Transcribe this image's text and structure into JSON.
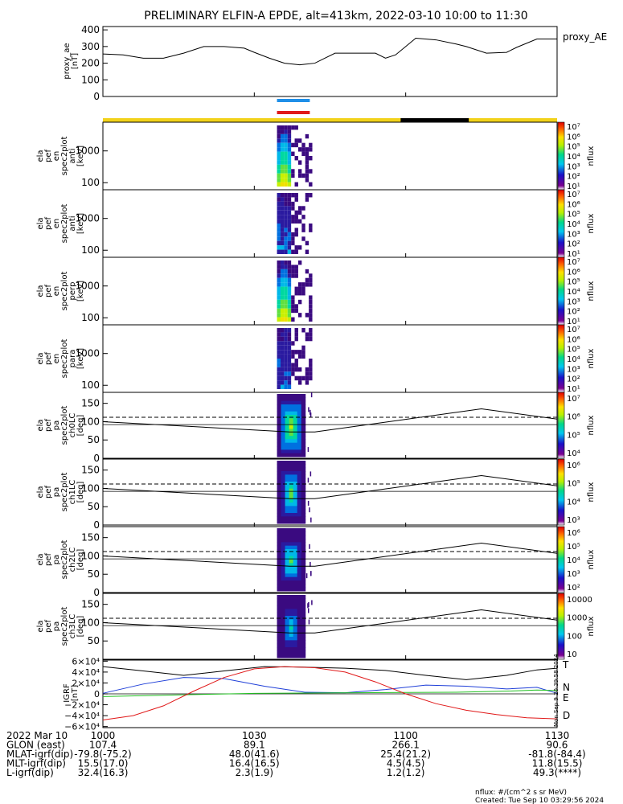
{
  "title": "PRELIMINARY ELFIN-A EPDE, alt=413km, 2022-03-10 10:00 to 11:30",
  "colors": {
    "sunlit_bar": "#f2d21a",
    "shadow_bar": "#000000",
    "science_zone_blue": "#1f8fe8",
    "science_zone_red": "#e01a1a",
    "igrf_N": "#1f3fd8",
    "igrf_E": "#22c022",
    "igrf_D": "#e01818",
    "igrf_total": "#000000"
  },
  "ae_panel": {
    "ylabel": "proxy_ae [nT]",
    "ylabel_lines": [
      "proxy_ae",
      "[nT]"
    ],
    "yticks": [
      "400",
      "300",
      "200",
      "100",
      "0"
    ],
    "legend": "proxy_AE"
  },
  "spec_panels": [
    {
      "ylabel_lines": [
        "ela",
        "pef",
        "en",
        "spec2plot",
        "anti",
        "[keV]"
      ],
      "yticks": [
        "1000",
        "100"
      ],
      "cbar_ticks": [
        "10⁷",
        "10⁶",
        "10⁵",
        "10⁴",
        "10³",
        "10²",
        "10¹"
      ],
      "cbar_label": "nflux"
    },
    {
      "ylabel_lines": [
        "ela",
        "pef",
        "en",
        "spec2plot",
        "anti",
        "[keV]"
      ],
      "yticks": [
        "1000",
        "100"
      ],
      "cbar_ticks": [
        "10⁷",
        "10⁶",
        "10⁵",
        "10⁴",
        "10³",
        "10²",
        "10¹"
      ],
      "cbar_label": "nflux"
    },
    {
      "ylabel_lines": [
        "ela",
        "pef",
        "en",
        "spec2plot",
        "perp",
        "[keV]"
      ],
      "yticks": [
        "1000",
        "100"
      ],
      "cbar_ticks": [
        "10⁷",
        "10⁶",
        "10⁵",
        "10⁴",
        "10³",
        "10²",
        "10¹"
      ],
      "cbar_label": "nflux"
    },
    {
      "ylabel_lines": [
        "ela",
        "pef",
        "en",
        "spec2plot",
        "para",
        "[keV]"
      ],
      "yticks": [
        "1000",
        "100"
      ],
      "cbar_ticks": [
        "10⁷",
        "10⁶",
        "10⁵",
        "10⁴",
        "10³",
        "10²",
        "10¹"
      ],
      "cbar_label": "nflux"
    }
  ],
  "pa_panels": [
    {
      "ylabel_lines": [
        "ela",
        "pef",
        "pa",
        "spec2plot",
        "ch0LC",
        "[deg]"
      ],
      "yticks": [
        "150",
        "100",
        "50",
        "0"
      ],
      "cbar_ticks": [
        "10⁷",
        "10⁶",
        "10⁵",
        "10⁴"
      ],
      "cbar_label": "nflux"
    },
    {
      "ylabel_lines": [
        "ela",
        "pef",
        "pa",
        "spec2plot",
        "ch1LC",
        "[deg]"
      ],
      "yticks": [
        "150",
        "100",
        "50",
        "0"
      ],
      "cbar_ticks": [
        "10⁶",
        "10⁵",
        "10⁴",
        "10³"
      ],
      "cbar_label": "nflux"
    },
    {
      "ylabel_lines": [
        "ela",
        "pef",
        "pa",
        "spec2plot",
        "ch2LC",
        "[deg]"
      ],
      "yticks": [
        "150",
        "100",
        "50",
        "0"
      ],
      "cbar_ticks": [
        "10⁶",
        "10⁵",
        "10⁴",
        "10³",
        "10²"
      ],
      "cbar_label": "nflux"
    },
    {
      "ylabel_lines": [
        "ela",
        "pef",
        "pa",
        "spec2plot",
        "ch3LC",
        "[deg]"
      ],
      "yticks": [
        "150",
        "100",
        "50"
      ],
      "cbar_ticks": [
        "10000",
        "1000",
        "100",
        "10"
      ],
      "cbar_label": "nflux"
    }
  ],
  "igrf_panel": {
    "ylabel_lines": [
      "IGRF",
      "[nT]"
    ],
    "yticks": [
      "6×10⁴",
      "4×10⁴",
      "2×10⁴",
      "0",
      "−2×10⁴",
      "−4×10⁴",
      "−6×10⁴"
    ],
    "legend": [
      "T",
      "N",
      "E",
      "D"
    ],
    "side_stamp": "Mon Sep 9 20:39:58 2024"
  },
  "footer": {
    "rows": [
      {
        "label": "2022 Mar 10",
        "values": [
          "1000",
          "1030",
          "1100",
          "1130"
        ]
      },
      {
        "label": "GLON (east)",
        "values": [
          "107.4",
          "89.1",
          "266.1",
          "90.6"
        ]
      },
      {
        "label": "MLAT-igrf(dip)",
        "values": [
          "-79.8(-75.2)",
          "48.0(41.6)",
          "25.4(21.2)",
          "-81.8(-84.4)"
        ]
      },
      {
        "label": "MLT-igrf(dip)",
        "values": [
          "15.5(17.0)",
          "16.4(16.5)",
          "4.5(4.5)",
          "11.8(15.5)"
        ]
      },
      {
        "label": "L-igrf(dip)",
        "values": [
          "32.4(16.3)",
          "2.3(1.9)",
          "1.2(1.2)",
          "49.3(****)"
        ]
      }
    ],
    "units_note": "nflux: #/(cm^2 s sr MeV)",
    "created": "Created: Tue Sep 10 03:29:56 2024"
  },
  "chart_data": {
    "type": "line",
    "title": "PRELIMINARY ELFIN-A EPDE, alt=413km, 2022-03-10 10:00 to 11:30",
    "x_range_minutes": [
      0,
      90
    ],
    "x_ticks": [
      "1000",
      "1030",
      "1100",
      "1130"
    ],
    "proxy_ae": {
      "ylim": [
        0,
        420
      ],
      "t": [
        0,
        4,
        8,
        12,
        16,
        20,
        24,
        28,
        30,
        33,
        36,
        39,
        42,
        44,
        46,
        50,
        54,
        56,
        58,
        60,
        62,
        66,
        70,
        72,
        76,
        80,
        82,
        86,
        90
      ],
      "y": [
        255,
        250,
        230,
        230,
        260,
        300,
        300,
        290,
        265,
        230,
        200,
        190,
        200,
        230,
        260,
        260,
        260,
        230,
        250,
        300,
        350,
        340,
        315,
        300,
        260,
        265,
        295,
        345,
        345
      ]
    },
    "science_zone_minutes": [
      34.5,
      41
    ],
    "shadow_minutes": [
      59,
      72.5
    ],
    "spectrogram_burst_minutes": [
      34.5,
      41.5
    ],
    "pa_lines": {
      "ylim": [
        0,
        180
      ],
      "t": [
        0,
        37,
        42,
        75,
        90
      ],
      "loss_cone": [
        100,
        72,
        72,
        135,
        107
      ],
      "dashed_t": [
        0,
        90
      ],
      "dashed": [
        112,
        112
      ],
      "solid_hline": 92
    },
    "igrf": {
      "ylim": [
        -62000,
        62000
      ],
      "series": [
        {
          "name": "T",
          "t": [
            0,
            8,
            16,
            24,
            32,
            40,
            48,
            56,
            64,
            72,
            80,
            86,
            90
          ],
          "values": [
            50000,
            42000,
            34000,
            42000,
            50000,
            49000,
            47000,
            43000,
            34000,
            26000,
            34000,
            44000,
            47000
          ]
        },
        {
          "name": "N",
          "t": [
            0,
            8,
            16,
            24,
            32,
            40,
            48,
            56,
            64,
            72,
            80,
            86,
            90
          ],
          "values": [
            1000,
            18000,
            30000,
            28000,
            14000,
            3000,
            2000,
            8000,
            16000,
            14000,
            9000,
            12000,
            1000
          ]
        },
        {
          "name": "E",
          "t": [
            0,
            10,
            20,
            30,
            40,
            50,
            60,
            70,
            80,
            86,
            90
          ],
          "values": [
            -5000,
            -3000,
            -1000,
            1000,
            1500,
            2000,
            2500,
            3000,
            5000,
            7000,
            6000
          ]
        },
        {
          "name": "D",
          "t": [
            0,
            6,
            12,
            18,
            24,
            30,
            36,
            42,
            48,
            54,
            60,
            66,
            72,
            78,
            84,
            90
          ],
          "values": [
            -48000,
            -40000,
            -22000,
            5000,
            30000,
            46000,
            50000,
            48000,
            40000,
            22000,
            0,
            -18000,
            -30000,
            -38000,
            -44000,
            -46000
          ]
        }
      ]
    }
  }
}
